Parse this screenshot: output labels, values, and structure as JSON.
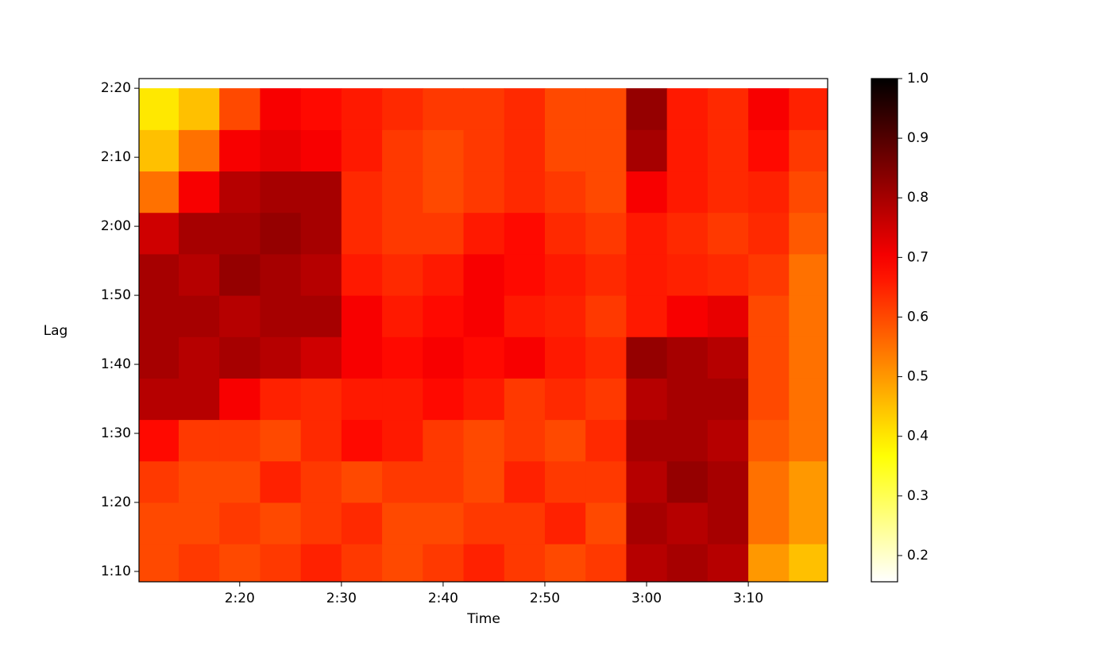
{
  "chart_data": {
    "type": "heatmap",
    "colormap": "hot_r",
    "x_label": "Time",
    "y_label": "Lag",
    "xlim": [
      130.1,
      197.8
    ],
    "xticks": [
      {
        "value": 140,
        "label": "2:20"
      },
      {
        "value": 150,
        "label": "2:30"
      },
      {
        "value": 160,
        "label": "2:40"
      },
      {
        "value": 170,
        "label": "2:50"
      },
      {
        "value": 180,
        "label": "3:00"
      },
      {
        "value": 190,
        "label": "3:10"
      }
    ],
    "ylim": [
      68.5,
      141.4
    ],
    "yticks": [
      {
        "value": 70,
        "label": "1:10"
      },
      {
        "value": 80,
        "label": "1:20"
      },
      {
        "value": 90,
        "label": "1:30"
      },
      {
        "value": 100,
        "label": "1:40"
      },
      {
        "value": 110,
        "label": "1:50"
      },
      {
        "value": 120,
        "label": "2:00"
      },
      {
        "value": 130,
        "label": "2:10"
      },
      {
        "value": 140,
        "label": "2:20"
      }
    ],
    "clim": [
      0.156,
      1
    ],
    "cticks": [
      0.2,
      0.3,
      0.4,
      0.5,
      0.6,
      0.7,
      0.8,
      0.9,
      {
        "value": 1,
        "label": "1.0"
      }
    ],
    "x": [
      132,
      136,
      140,
      144,
      148,
      152,
      156,
      160,
      164,
      168,
      172,
      176,
      180,
      184,
      188,
      192,
      196
    ],
    "y": [
      71,
      77,
      83,
      89,
      95,
      101,
      107,
      113,
      119,
      125,
      131,
      137
    ],
    "values": [
      [
        0.6,
        0.62,
        0.6,
        0.62,
        0.65,
        0.62,
        0.6,
        0.62,
        0.65,
        0.62,
        0.6,
        0.62,
        0.78,
        0.8,
        0.78,
        0.5,
        0.45
      ],
      [
        0.6,
        0.6,
        0.62,
        0.6,
        0.62,
        0.64,
        0.6,
        0.6,
        0.62,
        0.62,
        0.65,
        0.6,
        0.8,
        0.78,
        0.8,
        0.55,
        0.5
      ],
      [
        0.62,
        0.6,
        0.6,
        0.65,
        0.62,
        0.6,
        0.62,
        0.62,
        0.6,
        0.65,
        0.62,
        0.62,
        0.78,
        0.82,
        0.8,
        0.55,
        0.5
      ],
      [
        0.68,
        0.62,
        0.62,
        0.6,
        0.64,
        0.68,
        0.66,
        0.62,
        0.6,
        0.62,
        0.6,
        0.64,
        0.8,
        0.8,
        0.78,
        0.58,
        0.55
      ],
      [
        0.78,
        0.78,
        0.7,
        0.65,
        0.64,
        0.66,
        0.66,
        0.68,
        0.66,
        0.62,
        0.64,
        0.62,
        0.78,
        0.8,
        0.8,
        0.6,
        0.55
      ],
      [
        0.8,
        0.78,
        0.8,
        0.78,
        0.75,
        0.7,
        0.68,
        0.7,
        0.68,
        0.7,
        0.66,
        0.64,
        0.82,
        0.8,
        0.78,
        0.6,
        0.55
      ],
      [
        0.8,
        0.8,
        0.78,
        0.8,
        0.8,
        0.7,
        0.66,
        0.68,
        0.7,
        0.66,
        0.65,
        0.62,
        0.66,
        0.7,
        0.72,
        0.6,
        0.55
      ],
      [
        0.8,
        0.78,
        0.82,
        0.8,
        0.78,
        0.66,
        0.64,
        0.66,
        0.7,
        0.68,
        0.66,
        0.64,
        0.66,
        0.65,
        0.64,
        0.62,
        0.55
      ],
      [
        0.75,
        0.8,
        0.8,
        0.82,
        0.8,
        0.64,
        0.62,
        0.62,
        0.66,
        0.68,
        0.64,
        0.62,
        0.66,
        0.64,
        0.62,
        0.64,
        0.58
      ],
      [
        0.55,
        0.7,
        0.78,
        0.8,
        0.8,
        0.64,
        0.62,
        0.6,
        0.62,
        0.64,
        0.62,
        0.6,
        0.7,
        0.66,
        0.64,
        0.65,
        0.6
      ],
      [
        0.45,
        0.55,
        0.7,
        0.72,
        0.7,
        0.66,
        0.62,
        0.6,
        0.62,
        0.64,
        0.6,
        0.6,
        0.8,
        0.66,
        0.64,
        0.68,
        0.62
      ],
      [
        0.4,
        0.45,
        0.6,
        0.7,
        0.68,
        0.66,
        0.64,
        0.62,
        0.62,
        0.64,
        0.6,
        0.6,
        0.82,
        0.66,
        0.64,
        0.7,
        0.65
      ]
    ]
  }
}
